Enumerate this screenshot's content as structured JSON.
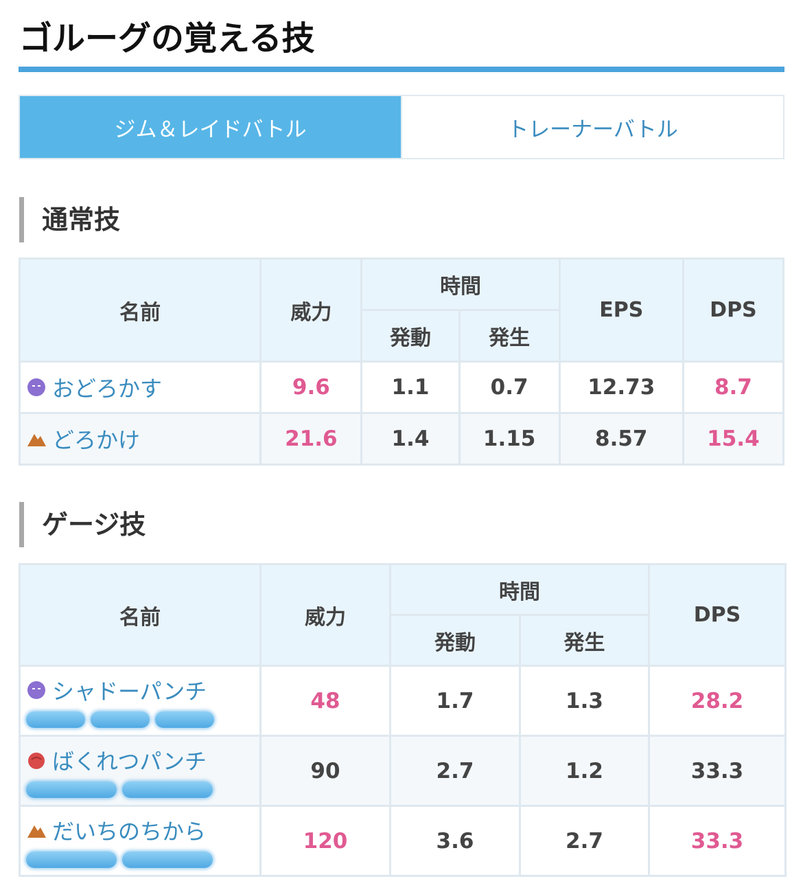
{
  "page_title": "ゴルーグの覚える技",
  "tabs": [
    {
      "label": "ジム＆レイドバトル",
      "active": true
    },
    {
      "label": "トレーナーバトル",
      "active": false
    }
  ],
  "fast_moves": {
    "heading": "通常技",
    "headers": {
      "name": "名前",
      "power": "威力",
      "time": "時間",
      "activation": "発動",
      "occurrence": "発生",
      "eps": "EPS",
      "dps": "DPS"
    },
    "rows": [
      {
        "type_icon": "ghost-type-icon",
        "name": "おどろかす",
        "power": "9.6",
        "activation": "1.1",
        "occurrence": "0.7",
        "eps": "12.73",
        "dps": "8.7",
        "highlight": true
      },
      {
        "type_icon": "ground-type-icon",
        "name": "どろかけ",
        "power": "21.6",
        "activation": "1.4",
        "occurrence": "1.15",
        "eps": "8.57",
        "dps": "15.4",
        "highlight": true
      }
    ]
  },
  "charged_moves": {
    "heading": "ゲージ技",
    "headers": {
      "name": "名前",
      "power": "威力",
      "time": "時間",
      "activation": "発動",
      "occurrence": "発生",
      "dps": "DPS"
    },
    "rows": [
      {
        "type_icon": "ghost-type-icon",
        "name": "シャドーパンチ",
        "energy_bars": 3,
        "power": "48",
        "activation": "1.7",
        "occurrence": "1.3",
        "dps": "28.2",
        "highlight": true
      },
      {
        "type_icon": "fighting-type-icon",
        "name": "ばくれつパンチ",
        "energy_bars": 2,
        "power": "90",
        "activation": "2.7",
        "occurrence": "1.2",
        "dps": "33.3",
        "highlight": false
      },
      {
        "type_icon": "ground-type-icon",
        "name": "だいちのちから",
        "energy_bars": 2,
        "power": "120",
        "activation": "3.6",
        "occurrence": "2.7",
        "dps": "33.3",
        "highlight": true
      }
    ]
  },
  "colors": {
    "accent": "#57b6e7",
    "value_highlight": "#e05a92",
    "link": "#3a8cbf"
  }
}
